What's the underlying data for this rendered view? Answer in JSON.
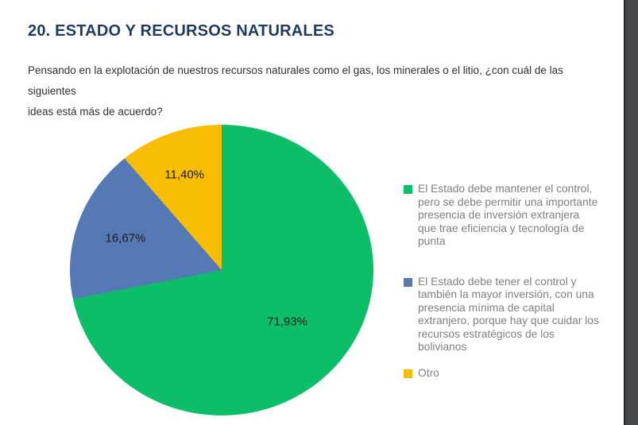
{
  "page": {
    "title": "20. ESTADO Y RECURSOS NATURALES",
    "question_lines": [
      "Pensando en la explotación de nuestros recursos naturales como el gas, los minerales o el litio, ¿con cuál de las siguientes",
      "ideas está más de acuerdo?"
    ]
  },
  "colors": {
    "title_text": "#1F3A5F",
    "body_text": "#303030",
    "legend_text": "#7F7F7F",
    "pie_label_text": "#1C1C1C",
    "edge_strip": "#47484B"
  },
  "chart_data": {
    "type": "pie",
    "title": "",
    "values_unit": "%",
    "start_angle_deg": 0,
    "direction": "clockwise",
    "legend_position": "right",
    "label_radius": [
      0.56,
      0.67,
      0.7
    ],
    "slices": [
      {
        "value": 71.93,
        "display": "71,93%",
        "color": "#0DBE69",
        "legend_label": "El Estado debe mantener el control, pero se debe permitir una importante presencia de inversión extranjera que trae eficiencia y tecnología de punta"
      },
      {
        "value": 16.67,
        "display": "16,67%",
        "color": "#5579B4",
        "legend_label": "El Estado debe tener el control y también la mayor inversión, con una presencia mínima de capital extranjero, porque hay que cuidar los recursos estratégicos de los bolivianos"
      },
      {
        "value": 11.4,
        "display": "11,40%",
        "color": "#F7BD00",
        "legend_label": "Otro"
      }
    ]
  }
}
